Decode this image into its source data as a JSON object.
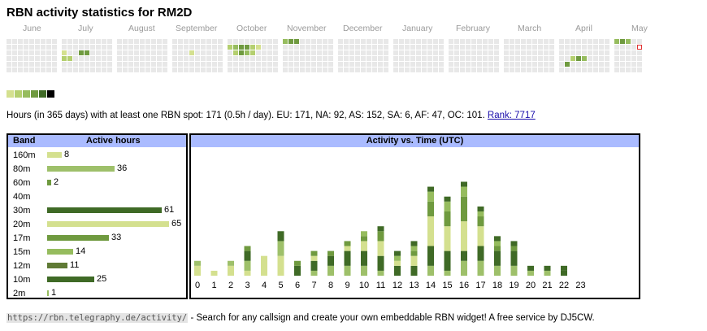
{
  "title": "RBN activity statistics for RM2D",
  "colors": {
    "empty": "#e8e8e8",
    "levels": [
      "#d4e08f",
      "#b4cf6f",
      "#96bc5e",
      "#6f9a3f",
      "#3f6a26",
      "#000000"
    ],
    "header": "#aabbff",
    "today_border": "#e03030"
  },
  "heatmap": {
    "months": [
      "June",
      "July",
      "August",
      "September",
      "October",
      "November",
      "December",
      "January",
      "February",
      "March",
      "April",
      "May"
    ],
    "activity": [
      {
        "month": 1,
        "week": 0,
        "day": 2,
        "level": 1
      },
      {
        "month": 1,
        "week": 0,
        "day": 3,
        "level": 2
      },
      {
        "month": 1,
        "week": 1,
        "day": 3,
        "level": 2
      },
      {
        "month": 1,
        "week": 3,
        "day": 2,
        "level": 4
      },
      {
        "month": 1,
        "week": 4,
        "day": 2,
        "level": 4
      },
      {
        "month": 3,
        "week": 3,
        "day": 2,
        "level": 1
      },
      {
        "month": 4,
        "week": 0,
        "day": 1,
        "level": 2
      },
      {
        "month": 4,
        "week": 1,
        "day": 1,
        "level": 3
      },
      {
        "month": 4,
        "week": 2,
        "day": 1,
        "level": 4
      },
      {
        "month": 4,
        "week": 3,
        "day": 1,
        "level": 4
      },
      {
        "month": 4,
        "week": 4,
        "day": 1,
        "level": 2
      },
      {
        "month": 4,
        "week": 5,
        "day": 1,
        "level": 1
      },
      {
        "month": 4,
        "week": 1,
        "day": 2,
        "level": 2
      },
      {
        "month": 4,
        "week": 2,
        "day": 2,
        "level": 4
      },
      {
        "month": 4,
        "week": 3,
        "day": 2,
        "level": 3
      },
      {
        "month": 4,
        "week": 4,
        "day": 2,
        "level": 2
      },
      {
        "month": 5,
        "week": 0,
        "day": 0,
        "level": 3
      },
      {
        "month": 5,
        "week": 1,
        "day": 0,
        "level": 4
      },
      {
        "month": 5,
        "week": 2,
        "day": 0,
        "level": 4
      },
      {
        "month": 10,
        "week": 1,
        "day": 4,
        "level": 4
      },
      {
        "month": 10,
        "week": 2,
        "day": 3,
        "level": 2
      },
      {
        "month": 10,
        "week": 3,
        "day": 3,
        "level": 4
      },
      {
        "month": 10,
        "week": 4,
        "day": 3,
        "level": 3
      },
      {
        "month": 11,
        "week": 0,
        "day": 0,
        "level": 3
      },
      {
        "month": 11,
        "week": 1,
        "day": 0,
        "level": 4
      },
      {
        "month": 11,
        "week": 2,
        "day": 0,
        "level": 3
      }
    ],
    "legend_levels": 6
  },
  "summary": {
    "text": "Hours (in 365 days) with at least one RBN spot: 171 (0.5h / day). EU: 171, NA: 92, AS: 152, SA: 6, AF: 47, OC: 101. ",
    "rank_link": "Rank: 7717"
  },
  "bands": {
    "header_band": "Band",
    "header_hours": "Active hours",
    "max_hours": 65,
    "rows": [
      {
        "name": "160m",
        "hours": 8,
        "color": "#d4e08f"
      },
      {
        "name": "80m",
        "hours": 36,
        "color": "#9ec06a"
      },
      {
        "name": "60m",
        "hours": 2,
        "color": "#6f9a3f"
      },
      {
        "name": "40m",
        "hours": 0,
        "color": "#96bc5e"
      },
      {
        "name": "30m",
        "hours": 61,
        "color": "#3f6a26"
      },
      {
        "name": "20m",
        "hours": 65,
        "color": "#d4e08f"
      },
      {
        "name": "17m",
        "hours": 33,
        "color": "#6f9a3f"
      },
      {
        "name": "15m",
        "hours": 14,
        "color": "#96bc5e"
      },
      {
        "name": "12m",
        "hours": 11,
        "color": "#5f7a35"
      },
      {
        "name": "10m",
        "hours": 25,
        "color": "#3f6a26"
      },
      {
        "name": "2m",
        "hours": 1,
        "color": "#96bc5e"
      }
    ]
  },
  "chart_data": {
    "type": "bar",
    "title": "Activity vs. Time (UTC)",
    "categories": [
      "0",
      "1",
      "2",
      "3",
      "4",
      "5",
      "6",
      "7",
      "8",
      "9",
      "10",
      "11",
      "12",
      "13",
      "14",
      "15",
      "16",
      "17",
      "18",
      "19",
      "20",
      "21",
      "22",
      "23"
    ],
    "series": [
      {
        "name": "160m",
        "color": "#d4e08f",
        "values": [
          2,
          1,
          2,
          1,
          4,
          4,
          0,
          0,
          0,
          0,
          0,
          0,
          0,
          0,
          0,
          0,
          0,
          0,
          0,
          0,
          0,
          0,
          0,
          0
        ]
      },
      {
        "name": "80m",
        "color": "#9ec06a",
        "values": [
          1,
          0,
          1,
          2,
          0,
          3,
          0,
          1,
          2,
          2,
          2,
          1,
          0,
          0,
          2,
          1,
          3,
          3,
          2,
          2,
          1,
          1,
          0,
          0
        ]
      },
      {
        "name": "30m",
        "color": "#3f6a26",
        "values": [
          0,
          0,
          0,
          2,
          0,
          2,
          2,
          2,
          2,
          3,
          3,
          3,
          2,
          2,
          4,
          4,
          2,
          3,
          3,
          3,
          1,
          1,
          1,
          0
        ]
      },
      {
        "name": "20m",
        "color": "#d4e08f",
        "values": [
          0,
          0,
          0,
          0,
          0,
          0,
          0,
          1,
          0,
          1,
          2,
          3,
          1,
          2,
          6,
          5,
          6,
          4,
          0,
          0,
          0,
          0,
          0,
          0
        ]
      },
      {
        "name": "17m",
        "color": "#6f9a3f",
        "values": [
          0,
          0,
          0,
          1,
          0,
          0,
          1,
          1,
          1,
          1,
          1,
          2,
          0,
          1,
          3,
          3,
          5,
          2,
          1,
          1,
          0,
          0,
          0,
          0
        ]
      },
      {
        "name": "15m",
        "color": "#96bc5e",
        "values": [
          0,
          0,
          0,
          0,
          0,
          0,
          0,
          0,
          0,
          0,
          1,
          0,
          1,
          1,
          2,
          2,
          2,
          1,
          1,
          0,
          0,
          0,
          0,
          0
        ]
      },
      {
        "name": "10m",
        "color": "#3f6a26",
        "values": [
          0,
          0,
          0,
          0,
          0,
          0,
          0,
          0,
          0,
          0,
          0,
          1,
          1,
          1,
          1,
          1,
          1,
          1,
          1,
          1,
          0,
          0,
          1,
          0
        ]
      }
    ],
    "ylim": [
      0,
      25
    ]
  },
  "footer": {
    "url": "https://rbn.telegraphy.de/activity/",
    "text": " - Search for any callsign and create your own embeddable RBN widget! A free service by DJ5CW."
  }
}
